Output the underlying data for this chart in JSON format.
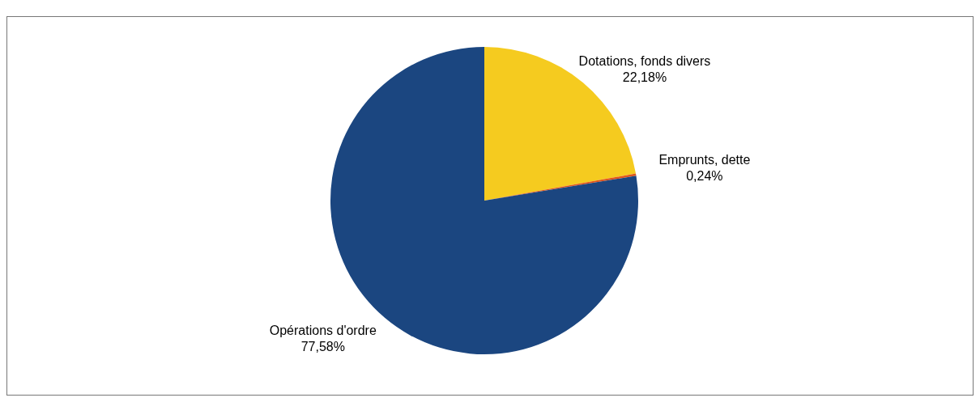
{
  "chart_data": {
    "type": "pie",
    "categories": [
      "Dotations, fonds divers",
      "Emprunts, dette",
      "Opérations d'ordre"
    ],
    "values": [
      22.18,
      0.24,
      77.58
    ],
    "colors": [
      "#f5cb1f",
      "#e0561c",
      "#1b4680"
    ],
    "value_labels": [
      "22,18%",
      "0,24%",
      "77,58%"
    ],
    "legend": false
  }
}
